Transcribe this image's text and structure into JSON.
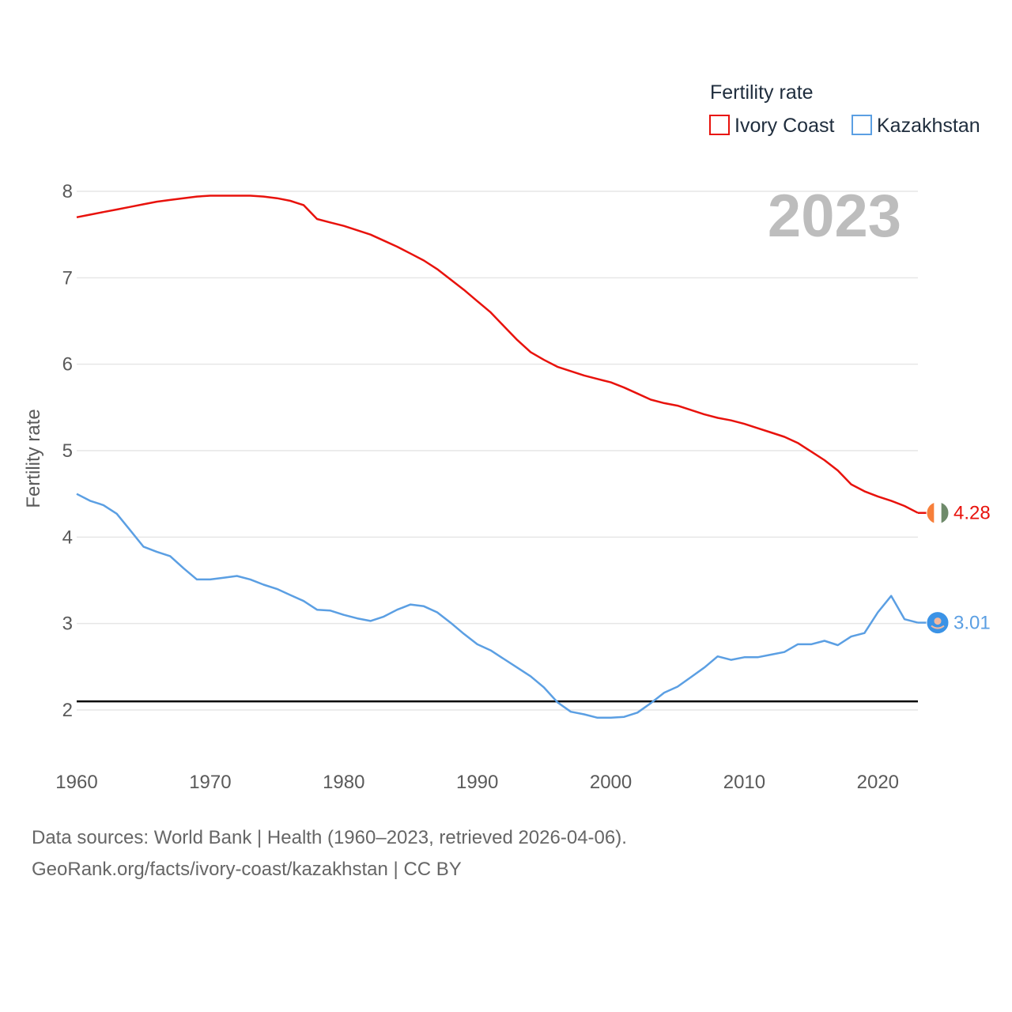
{
  "chart_data": {
    "type": "line",
    "title": "",
    "year_label": "2023",
    "xlabel": "",
    "ylabel": "Fertility rate",
    "xlim": [
      1960,
      2023
    ],
    "ylim": [
      1.5,
      8.1
    ],
    "yticks": [
      2,
      3,
      4,
      5,
      6,
      7,
      8
    ],
    "xticks": [
      1960,
      1970,
      1980,
      1990,
      2000,
      2010,
      2020
    ],
    "grid": true,
    "legend": {
      "title": "Fertility rate",
      "placement": "top-right"
    },
    "reference_line": {
      "y": 2.1,
      "color": "#000000"
    },
    "x": [
      1960,
      1961,
      1962,
      1963,
      1964,
      1965,
      1966,
      1967,
      1968,
      1969,
      1970,
      1971,
      1972,
      1973,
      1974,
      1975,
      1976,
      1977,
      1978,
      1979,
      1980,
      1981,
      1982,
      1983,
      1984,
      1985,
      1986,
      1987,
      1988,
      1989,
      1990,
      1991,
      1992,
      1993,
      1994,
      1995,
      1996,
      1997,
      1998,
      1999,
      2000,
      2001,
      2002,
      2003,
      2004,
      2005,
      2006,
      2007,
      2008,
      2009,
      2010,
      2011,
      2012,
      2013,
      2014,
      2015,
      2016,
      2017,
      2018,
      2019,
      2020,
      2021,
      2022,
      2023
    ],
    "series": [
      {
        "name": "Ivory Coast",
        "color": "#e8120c",
        "end_label": "4.28",
        "flag": "ivory-coast-flag",
        "values": [
          7.7,
          7.73,
          7.76,
          7.79,
          7.82,
          7.85,
          7.88,
          7.9,
          7.92,
          7.94,
          7.95,
          7.95,
          7.95,
          7.95,
          7.94,
          7.92,
          7.89,
          7.84,
          7.68,
          7.64,
          7.6,
          7.55,
          7.5,
          7.43,
          7.36,
          7.28,
          7.2,
          7.1,
          6.98,
          6.86,
          6.73,
          6.6,
          6.44,
          6.28,
          6.14,
          6.05,
          5.97,
          5.92,
          5.87,
          5.83,
          5.79,
          5.73,
          5.66,
          5.59,
          5.55,
          5.52,
          5.47,
          5.42,
          5.38,
          5.35,
          5.31,
          5.26,
          5.21,
          5.16,
          5.09,
          4.99,
          4.89,
          4.77,
          4.61,
          4.53,
          4.47,
          4.42,
          4.36,
          4.28
        ]
      },
      {
        "name": "Kazakhstan",
        "color": "#5b9fe3",
        "end_label": "3.01",
        "flag": "kazakhstan-flag",
        "values": [
          4.5,
          4.42,
          4.37,
          4.27,
          4.08,
          3.89,
          3.83,
          3.78,
          3.64,
          3.51,
          3.51,
          3.53,
          3.55,
          3.51,
          3.45,
          3.4,
          3.33,
          3.26,
          3.16,
          3.15,
          3.1,
          3.06,
          3.03,
          3.08,
          3.16,
          3.22,
          3.2,
          3.13,
          3.01,
          2.88,
          2.76,
          2.69,
          2.59,
          2.49,
          2.39,
          2.26,
          2.09,
          1.98,
          1.95,
          1.91,
          1.91,
          1.92,
          1.97,
          2.08,
          2.2,
          2.27,
          2.38,
          2.49,
          2.62,
          2.58,
          2.61,
          2.61,
          2.64,
          2.67,
          2.76,
          2.76,
          2.8,
          2.75,
          2.85,
          2.89,
          3.13,
          3.32,
          3.05,
          3.01
        ]
      }
    ]
  },
  "footer": {
    "line1": "Data sources: World Bank | Health (1960–2023, retrieved 2026-04-06).",
    "line2": "GeoRank.org/facts/ivory-coast/kazakhstan | CC BY"
  }
}
